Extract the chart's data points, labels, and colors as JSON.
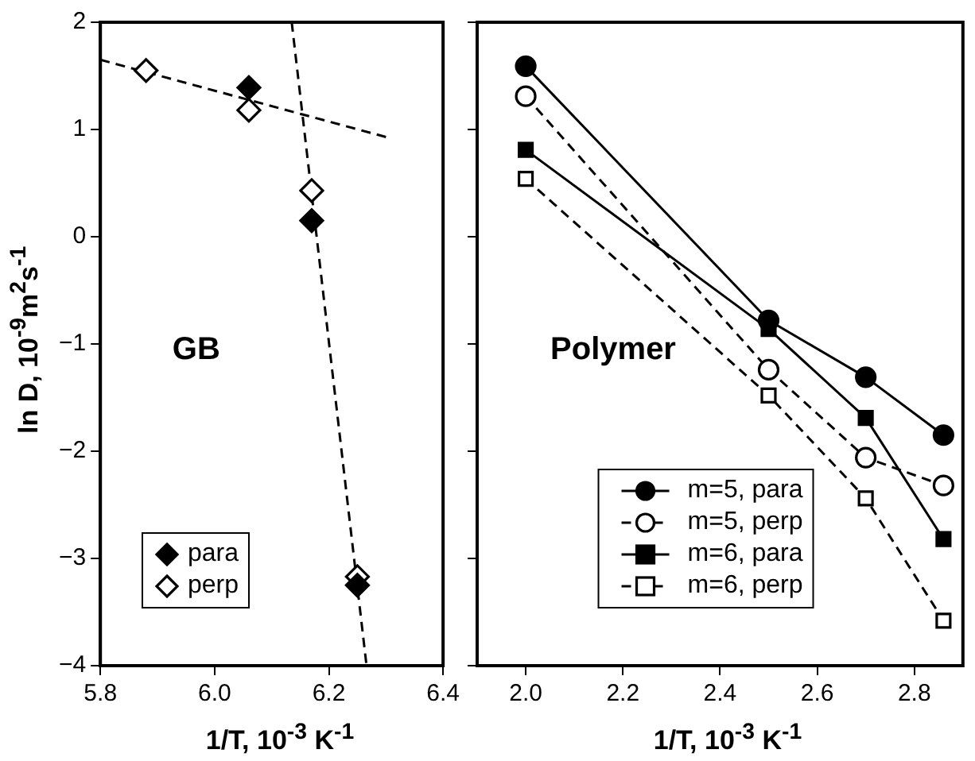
{
  "chart_data": [
    {
      "type": "scatter",
      "xlabel": "1/T, 10$^{-3}$ K$^{-1}$",
      "ylabel": "ln D, 10$^{-9}$m$^{2}$s$^{-1}$",
      "annotations": [
        "GB"
      ],
      "xlim": [
        5.8,
        6.4
      ],
      "xticks": [
        5.8,
        {
          "value": 6.0,
          "label": "6.0"
        },
        6.2,
        6.4
      ],
      "ylim": [
        -4,
        2
      ],
      "yticks": [
        -4,
        -3,
        -2,
        -1,
        0,
        1,
        2
      ],
      "grid": false,
      "legend": "bottom left",
      "series": [
        {
          "name": "para",
          "color": "#000000",
          "marker": "diamond",
          "x": [
            6.06,
            6.17,
            6.25
          ],
          "values": [
            1.39,
            0.15,
            -3.25
          ]
        },
        {
          "name": "perp",
          "color": "#000000",
          "marker": "diamond",
          "x": [
            5.88,
            6.06,
            6.17,
            6.25
          ],
          "values": [
            1.55,
            1.18,
            0.43,
            -3.17
          ]
        },
        {
          "type": "line",
          "color": "#000000",
          "marker": "none",
          "line_style": "dashed",
          "x": [
            5.8,
            6.3
          ],
          "values": [
            1.65,
            0.93
          ]
        },
        {
          "type": "line",
          "color": "#000000",
          "marker": "none",
          "line_style": "dashed",
          "x": [
            6.135,
            6.266
          ],
          "values": [
            2,
            -4
          ]
        }
      ]
    },
    {
      "type": "line",
      "xlabel": "1/T, 10$^{-3}$ K$^{-1}$",
      "annotations": [
        "Polymer"
      ],
      "tick_labels": "x",
      "x": [
        2.0,
        2.5,
        2.7,
        2.86
      ],
      "xlim": [
        1.9,
        2.9
      ],
      "xticks": [
        {
          "value": 2.0,
          "label": "2.0"
        },
        2.2,
        2.4,
        2.6,
        2.8
      ],
      "ylim": [
        -4,
        2
      ],
      "yticks": [
        -4,
        -3,
        -2,
        -1,
        0,
        1,
        2
      ],
      "grid": false,
      "legend": "bottom",
      "series": [
        {
          "name": "m=5, para",
          "color": "#000000",
          "marker": "circle",
          "line_style": "solid",
          "values": [
            1.59,
            -0.78,
            -1.31,
            -1.85
          ]
        },
        {
          "name": "m=5, perp",
          "color": "#000000",
          "marker": "circle",
          "line_style": "dashed",
          "values": [
            1.31,
            -1.24,
            -2.06,
            -2.32
          ]
        },
        {
          "name": "m=6, para",
          "color": "#000000",
          "marker": "square",
          "line_style": "solid",
          "values": [
            0.81,
            -0.86,
            -1.69,
            -2.82
          ]
        },
        {
          "name": "m=6, perp",
          "color": "#000000",
          "marker": "square",
          "line_style": "dashed",
          "values": [
            0.54,
            -1.48,
            -2.44,
            -3.58
          ]
        }
      ]
    }
  ]
}
